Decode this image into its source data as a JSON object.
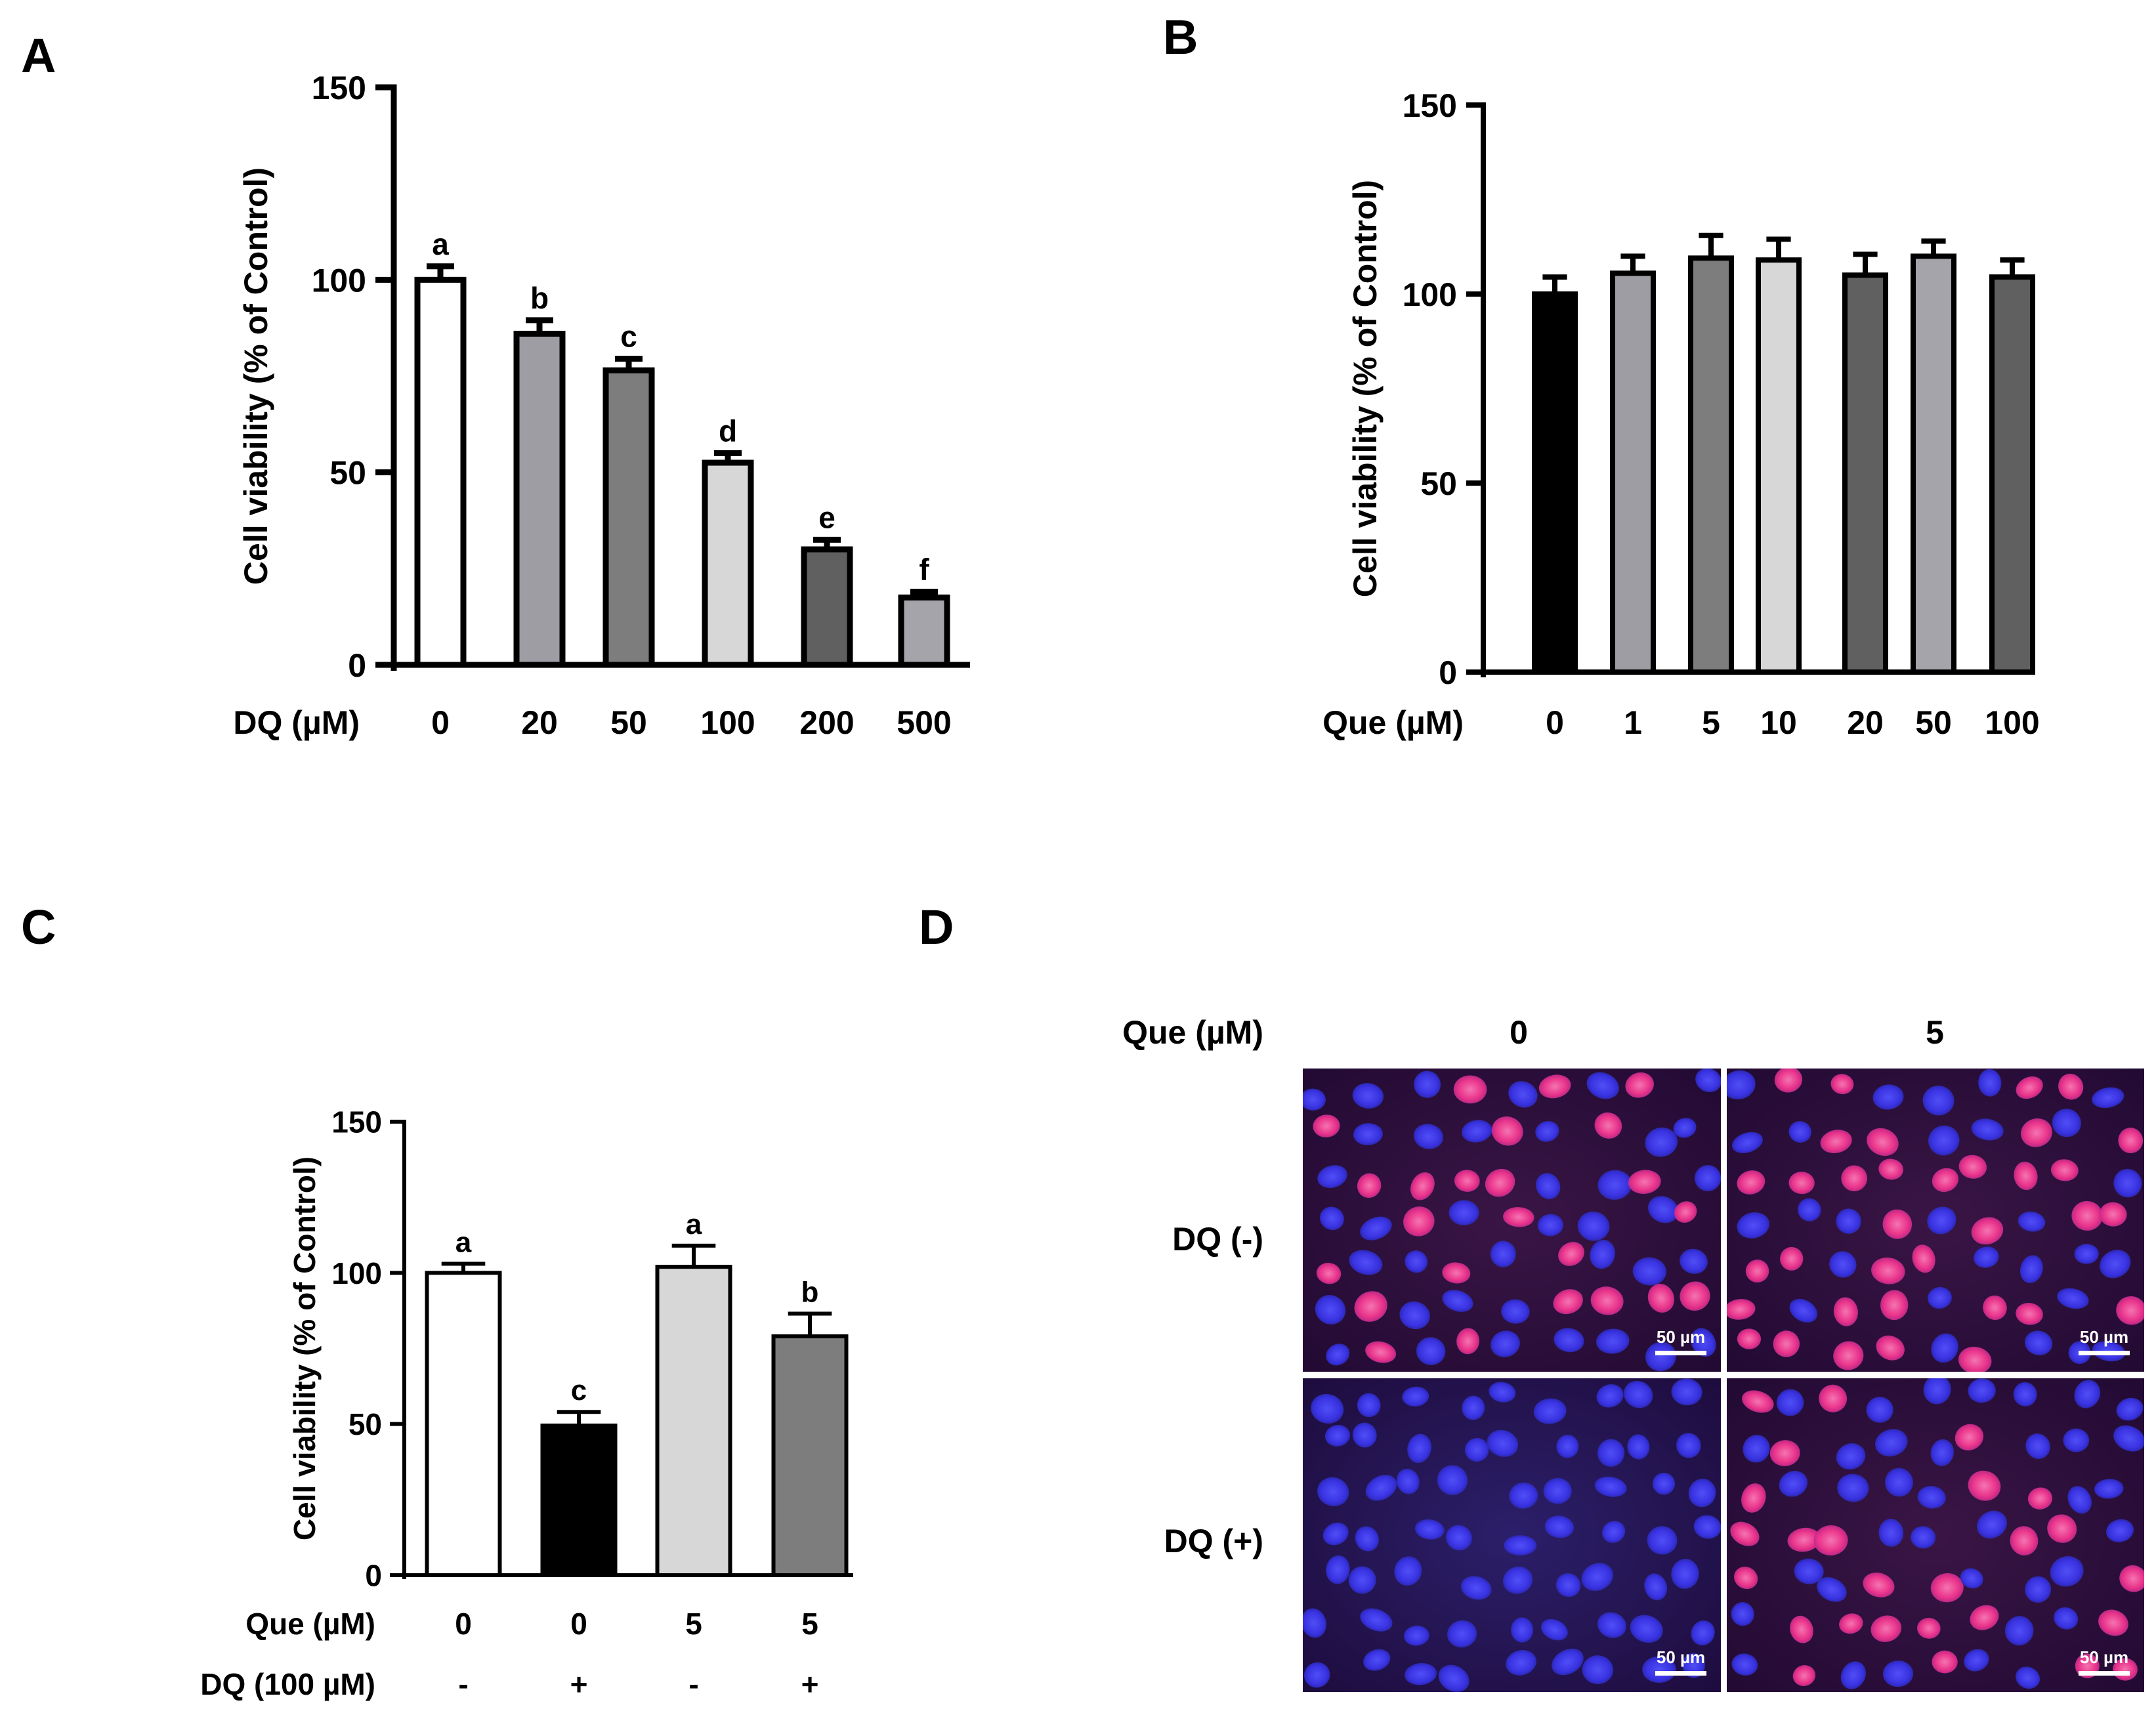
{
  "chart_data": [
    {
      "panel": "A",
      "type": "bar",
      "ylabel": "Cell viability  (% of Control)",
      "ylim": [
        0,
        150
      ],
      "yticks": [
        0,
        50,
        100,
        150
      ],
      "xlabel": "DQ (µM)",
      "categories": [
        "0",
        "20",
        "50",
        "100",
        "200",
        "500"
      ],
      "values": [
        100,
        86,
        76.5,
        52.5,
        30,
        17.5
      ],
      "errors": [
        3.5,
        3.5,
        3,
        2.5,
        2.5,
        1.5
      ],
      "letters": [
        "a",
        "b",
        "c",
        "d",
        "e",
        "f"
      ],
      "colors": [
        "#ffffff",
        "#9d9da3",
        "#7d7d7d",
        "#d7d7d7",
        "#606060",
        "#a4a4aa"
      ]
    },
    {
      "panel": "B",
      "type": "bar",
      "ylabel": "Cell viability  (% of Control)",
      "ylim": [
        0,
        150
      ],
      "yticks": [
        0,
        50,
        100,
        150
      ],
      "xlabel": "Que (µM)",
      "categories": [
        "0",
        "1",
        "5",
        "10",
        "20",
        "50",
        "100"
      ],
      "values": [
        100,
        105.5,
        109.5,
        109,
        105,
        110,
        104.5
      ],
      "errors": [
        4.5,
        4.5,
        6,
        5.5,
        5.5,
        4,
        4.5
      ],
      "colors": [
        "#000000",
        "#9d9da3",
        "#7d7d7d",
        "#d7d7d7",
        "#606060",
        "#a4a4aa",
        "#606060"
      ]
    },
    {
      "panel": "C",
      "type": "bar",
      "ylabel": "Cell viability  (% of Control)",
      "ylim": [
        0,
        150
      ],
      "yticks": [
        0,
        50,
        100,
        150
      ],
      "row_labels": [
        "Que (µM)",
        "DQ (100 µM)"
      ],
      "categories": [
        "0",
        "0",
        "5",
        "5"
      ],
      "categories2": [
        "-",
        "+",
        "-",
        "+"
      ],
      "values": [
        100,
        49.5,
        102,
        79
      ],
      "errors": [
        3,
        4.5,
        7,
        7.5
      ],
      "letters": [
        "a",
        "c",
        "a",
        "b"
      ],
      "colors": [
        "#ffffff",
        "#000000",
        "#d7d7d7",
        "#7d7d7d"
      ]
    }
  ],
  "panel_labels": [
    "A",
    "B",
    "C",
    "D"
  ],
  "panel_d": {
    "header_label": "Que (µM)",
    "columns": [
      "0",
      "5"
    ],
    "rows": [
      "DQ (-)",
      "DQ (+)"
    ],
    "scale_bar": "50 µm",
    "colors": {
      "background": "#2a0e3a",
      "nucleus_blue": "#3c3cf0",
      "nucleus_pink": "#f43c9a"
    }
  }
}
